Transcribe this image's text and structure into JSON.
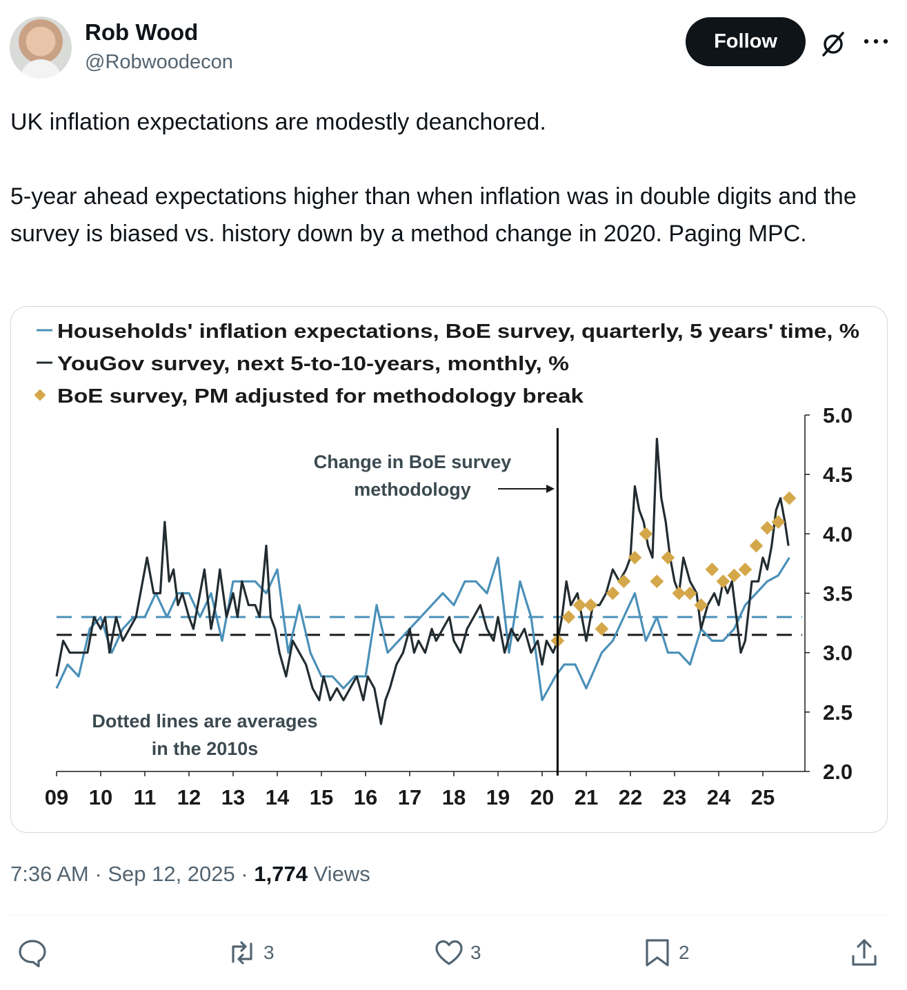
{
  "author": {
    "name": "Rob Wood",
    "handle": "@Robwoodecon"
  },
  "follow_label": "Follow",
  "icons": {
    "grok": "slashed-circle-icon",
    "more": "more-icon",
    "reply": "reply-icon",
    "repost": "repost-icon",
    "like": "heart-icon",
    "bookmark": "bookmark-icon",
    "share": "share-icon"
  },
  "post": {
    "line1": "UK inflation expectations are modestly deanchored.",
    "line2": "5-year ahead expectations higher than when inflation was in double digits and the survey is biased vs. history down by a method change in 2020. Paging MPC."
  },
  "meta": {
    "time": "7:36 AM",
    "sep": "·",
    "date": "Sep 12, 2025",
    "views_count": "1,774",
    "views_label": "Views"
  },
  "actions": {
    "replies": "",
    "reposts": "3",
    "likes": "3",
    "bookmarks": "2"
  },
  "colors": {
    "boe": "#4a90b8",
    "yougov": "#222c30",
    "adjusted": "#d4a84a"
  },
  "chart_data": {
    "type": "line",
    "legend": [
      "Households' inflation expectations, BoE survey, quarterly, 5 years' time, %",
      "YouGov survey, next 5-to-10-years, monthly, %",
      "BoE survey, PM adjusted for methodology break"
    ],
    "xlabel": "",
    "ylabel": "",
    "x_ticks": [
      "09",
      "10",
      "11",
      "12",
      "13",
      "14",
      "15",
      "16",
      "17",
      "18",
      "19",
      "20",
      "21",
      "22",
      "23",
      "24",
      "25"
    ],
    "y_ticks": [
      "5.0",
      "4.5",
      "4.0",
      "3.5",
      "3.0",
      "2.5",
      "2.0"
    ],
    "ylim": [
      2.0,
      5.0
    ],
    "xlim": [
      2009,
      2026
    ],
    "annotation_change": [
      "Change in BoE survey",
      "methodology"
    ],
    "annotation_dotted": [
      "Dotted lines are averages",
      "in the 2010s"
    ],
    "methodology_break_year": 2020.35,
    "averages": {
      "boe_2010s": 3.3,
      "yougov_2010s": 3.15
    },
    "series": [
      {
        "name": "BoE survey, quarterly",
        "x": [
          2009.0,
          2009.25,
          2009.5,
          2009.75,
          2010.0,
          2010.25,
          2010.5,
          2010.75,
          2011.0,
          2011.25,
          2011.5,
          2011.75,
          2012.0,
          2012.25,
          2012.5,
          2012.75,
          2013.0,
          2013.25,
          2013.5,
          2013.75,
          2014.0,
          2014.25,
          2014.5,
          2014.75,
          2015.0,
          2015.25,
          2015.5,
          2015.75,
          2016.0,
          2016.25,
          2016.5,
          2016.75,
          2017.0,
          2017.25,
          2017.5,
          2017.75,
          2018.0,
          2018.25,
          2018.5,
          2018.75,
          2019.0,
          2019.25,
          2019.5,
          2019.75,
          2020.0,
          2020.3,
          2020.5,
          2020.75,
          2021.0,
          2021.35,
          2021.6,
          2021.85,
          2022.1,
          2022.35,
          2022.6,
          2022.85,
          2023.1,
          2023.35,
          2023.6,
          2023.85,
          2024.1,
          2024.35,
          2024.6,
          2024.85,
          2025.1,
          2025.35,
          2025.6
        ],
        "values": [
          2.7,
          2.9,
          2.8,
          3.2,
          3.3,
          3.0,
          3.2,
          3.3,
          3.3,
          3.5,
          3.3,
          3.5,
          3.5,
          3.3,
          3.5,
          3.1,
          3.6,
          3.6,
          3.6,
          3.5,
          3.7,
          3.0,
          3.4,
          3.0,
          2.8,
          2.8,
          2.7,
          2.8,
          2.8,
          3.4,
          3.0,
          3.1,
          3.2,
          3.3,
          3.4,
          3.5,
          3.4,
          3.6,
          3.6,
          3.5,
          3.8,
          3.0,
          3.6,
          3.3,
          2.6,
          2.8,
          2.9,
          2.9,
          2.7,
          3.0,
          3.1,
          3.3,
          3.5,
          3.1,
          3.3,
          3.0,
          3.0,
          2.9,
          3.2,
          3.1,
          3.1,
          3.2,
          3.4,
          3.5,
          3.6,
          3.65,
          3.8
        ]
      },
      {
        "name": "YouGov survey, monthly",
        "x": [
          2009.0,
          2009.15,
          2009.3,
          2009.5,
          2009.7,
          2009.85,
          2010.0,
          2010.1,
          2010.2,
          2010.35,
          2010.5,
          2010.65,
          2010.8,
          2010.95,
          2011.05,
          2011.2,
          2011.35,
          2011.45,
          2011.55,
          2011.65,
          2011.75,
          2011.85,
          2012.0,
          2012.1,
          2012.2,
          2012.35,
          2012.5,
          2012.6,
          2012.7,
          2012.85,
          2013.0,
          2013.1,
          2013.2,
          2013.35,
          2013.5,
          2013.6,
          2013.75,
          2013.85,
          2013.95,
          2014.05,
          2014.2,
          2014.35,
          2014.5,
          2014.65,
          2014.8,
          2014.95,
          2015.05,
          2015.2,
          2015.35,
          2015.5,
          2015.65,
          2015.8,
          2015.95,
          2016.05,
          2016.2,
          2016.35,
          2016.45,
          2016.55,
          2016.7,
          2016.85,
          2017.0,
          2017.1,
          2017.2,
          2017.35,
          2017.5,
          2017.6,
          2017.75,
          2017.9,
          2018.0,
          2018.15,
          2018.3,
          2018.45,
          2018.6,
          2018.75,
          2018.9,
          2019.0,
          2019.15,
          2019.3,
          2019.45,
          2019.6,
          2019.75,
          2019.9,
          2020.0,
          2020.1,
          2020.25,
          2020.35,
          2020.45,
          2020.55,
          2020.65,
          2020.8,
          2020.9,
          2021.0,
          2021.15,
          2021.3,
          2021.45,
          2021.6,
          2021.75,
          2021.9,
          2022.0,
          2022.1,
          2022.2,
          2022.3,
          2022.4,
          2022.5,
          2022.6,
          2022.7,
          2022.8,
          2022.9,
          2023.0,
          2023.1,
          2023.2,
          2023.35,
          2023.5,
          2023.6,
          2023.75,
          2023.9,
          2024.0,
          2024.1,
          2024.2,
          2024.3,
          2024.4,
          2024.5,
          2024.6,
          2024.75,
          2024.9,
          2025.0,
          2025.1,
          2025.2,
          2025.3,
          2025.4,
          2025.5,
          2025.58
        ],
        "values": [
          2.8,
          3.1,
          3.0,
          3.0,
          3.0,
          3.3,
          3.2,
          3.3,
          3.0,
          3.3,
          3.1,
          3.2,
          3.3,
          3.6,
          3.8,
          3.5,
          3.5,
          4.1,
          3.6,
          3.7,
          3.4,
          3.5,
          3.3,
          3.2,
          3.4,
          3.7,
          3.2,
          3.4,
          3.7,
          3.3,
          3.5,
          3.3,
          3.6,
          3.4,
          3.4,
          3.3,
          3.9,
          3.3,
          3.2,
          3.0,
          2.8,
          3.1,
          3.0,
          2.9,
          2.7,
          2.6,
          2.8,
          2.6,
          2.7,
          2.6,
          2.7,
          2.8,
          2.6,
          2.8,
          2.7,
          2.4,
          2.6,
          2.7,
          2.9,
          3.0,
          3.2,
          3.0,
          3.1,
          3.0,
          3.2,
          3.1,
          3.2,
          3.3,
          3.1,
          3.0,
          3.2,
          3.3,
          3.4,
          3.2,
          3.1,
          3.3,
          3.0,
          3.2,
          3.1,
          3.2,
          3.0,
          3.1,
          2.9,
          3.1,
          3.0,
          3.1,
          3.3,
          3.6,
          3.4,
          3.5,
          3.3,
          3.1,
          3.4,
          3.4,
          3.5,
          3.7,
          3.6,
          3.7,
          3.8,
          4.4,
          4.2,
          4.1,
          3.9,
          3.8,
          4.8,
          4.3,
          4.1,
          3.8,
          3.6,
          3.5,
          3.8,
          3.6,
          3.5,
          3.2,
          3.4,
          3.5,
          3.4,
          3.6,
          3.5,
          3.6,
          3.3,
          3.0,
          3.1,
          3.6,
          3.6,
          3.8,
          3.7,
          3.9,
          4.2,
          4.3,
          4.1,
          3.9
        ]
      },
      {
        "name": "BoE survey, PM adjusted",
        "x": [
          2020.35,
          2020.6,
          2020.85,
          2021.1,
          2021.35,
          2021.6,
          2021.85,
          2022.1,
          2022.35,
          2022.6,
          2022.85,
          2023.1,
          2023.35,
          2023.6,
          2023.85,
          2024.1,
          2024.35,
          2024.6,
          2024.85,
          2025.1,
          2025.35,
          2025.6
        ],
        "values": [
          3.1,
          3.3,
          3.4,
          3.4,
          3.2,
          3.5,
          3.6,
          3.8,
          4.0,
          3.6,
          3.8,
          3.5,
          3.5,
          3.4,
          3.7,
          3.6,
          3.65,
          3.7,
          3.9,
          4.05,
          4.1,
          4.3
        ]
      }
    ]
  }
}
